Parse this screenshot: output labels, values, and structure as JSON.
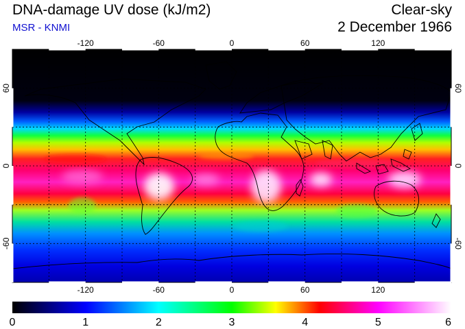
{
  "header": {
    "title": "DNA-damage UV dose (kJ/m2)",
    "source": "MSR - KNMI",
    "sky_condition": "Clear-sky",
    "date": "2 December 1966"
  },
  "map": {
    "projection": "equirectangular",
    "lon_range": [
      -180,
      180
    ],
    "lat_range": [
      -90,
      90
    ],
    "lon_ticks": [
      "-120",
      "-60",
      "0",
      "60",
      "120"
    ],
    "lat_ticks": [
      "60",
      "0",
      "-60"
    ],
    "grid_lines": "dashed every 30 degrees",
    "coastlines": true
  },
  "colorbar": {
    "labels": [
      "0",
      "1",
      "2",
      "3",
      "4",
      "5",
      "6"
    ],
    "colors": [
      "#000000",
      "#0000ff",
      "#00ffff",
      "#00ff00",
      "#ffff00",
      "#ff0000",
      "#ff00ff",
      "#ffffff"
    ]
  },
  "colors": {
    "title": "#000000",
    "source": "#1010d0"
  }
}
